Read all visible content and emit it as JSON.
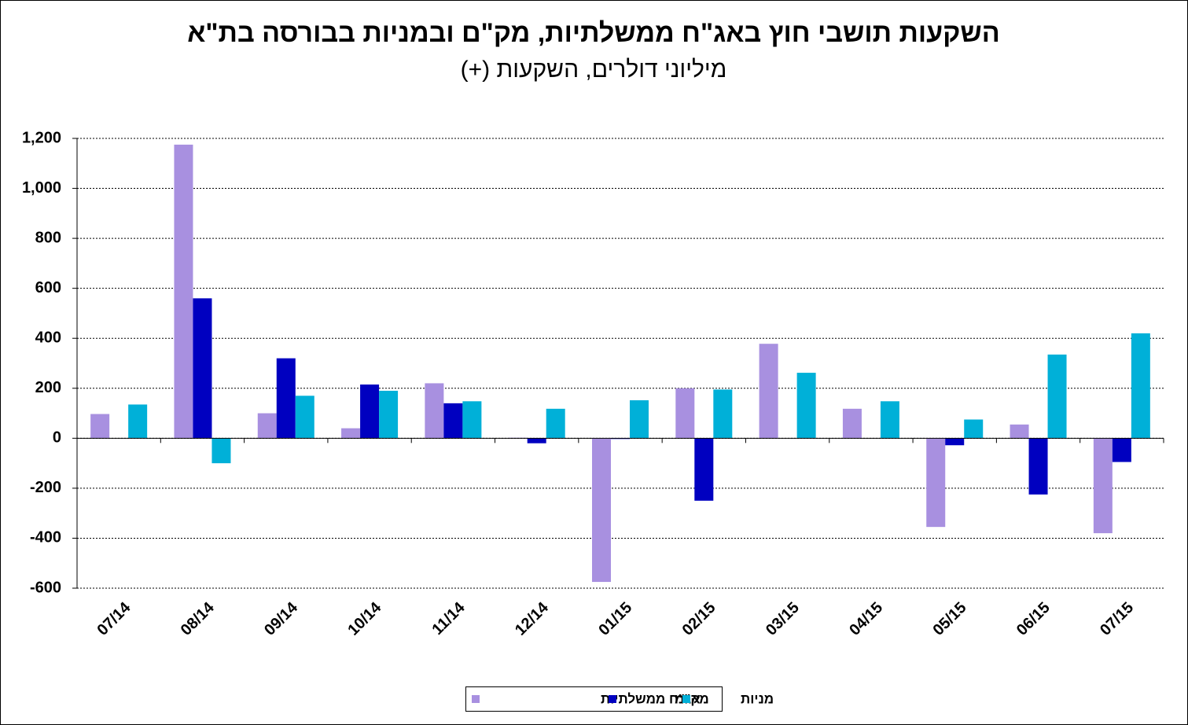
{
  "chart_data": {
    "type": "bar",
    "title": "השקעות תושבי חוץ באג\"ח ממשלתיות, מק\"ם ובמניות בבורסה בת\"א",
    "subtitle": "מיליוני דולרים, השקעות (+)",
    "categories": [
      "07/14",
      "08/14",
      "09/14",
      "10/14",
      "11/14",
      "12/14",
      "01/15",
      "02/15",
      "03/15",
      "04/15",
      "05/15",
      "06/15",
      "07/15"
    ],
    "series": [
      {
        "name": "אג\"ח ממשלתיות",
        "color": "#a890e0",
        "values": [
          97,
          1175,
          100,
          40,
          220,
          2,
          -575,
          200,
          378,
          118,
          -355,
          55,
          -380
        ]
      },
      {
        "name": "מק\"מ",
        "color": "#0000c0",
        "values": [
          0,
          560,
          320,
          215,
          140,
          -20,
          -3,
          -250,
          0,
          0,
          -28,
          -225,
          -95
        ]
      },
      {
        "name": "מניות",
        "color": "#00b0d8",
        "values": [
          135,
          -100,
          170,
          190,
          148,
          118,
          152,
          195,
          262,
          148,
          75,
          335,
          420
        ]
      }
    ],
    "ylim": [
      -600,
      1200
    ],
    "yticks": [
      {
        "value": 1200,
        "label": "1,200"
      },
      {
        "value": 1000,
        "label": "1,000"
      },
      800,
      600,
      400,
      200,
      0,
      -200,
      -400,
      -600
    ],
    "grid": true,
    "legend": "bottom"
  }
}
